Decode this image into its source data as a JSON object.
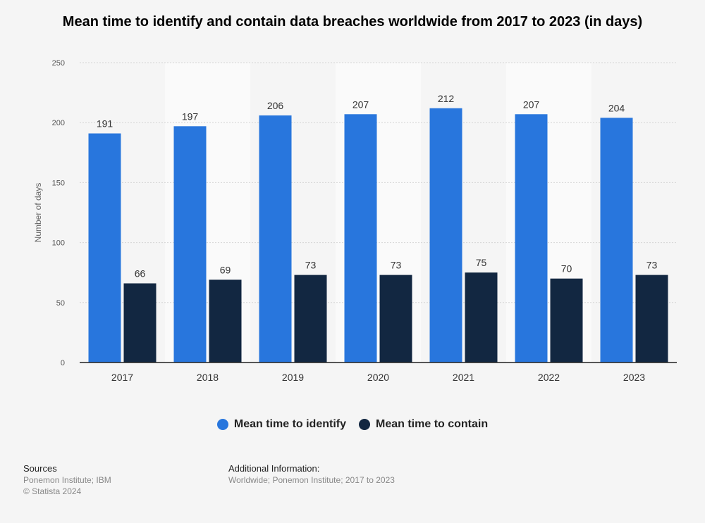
{
  "chart_data": {
    "type": "bar",
    "title": "Mean time to identify and contain data breaches worldwide from 2017 to 2023 (in days)",
    "xlabel": "",
    "ylabel": "Number of days",
    "categories": [
      "2017",
      "2018",
      "2019",
      "2020",
      "2021",
      "2022",
      "2023"
    ],
    "series": [
      {
        "name": "Mean time to identify",
        "values": [
          191,
          197,
          206,
          207,
          212,
          207,
          204
        ],
        "color": "#2876dd"
      },
      {
        "name": "Mean time to contain",
        "values": [
          66,
          69,
          73,
          73,
          75,
          70,
          73
        ],
        "color": "#122741"
      }
    ],
    "ylim": [
      0,
      250
    ],
    "yticks": [
      0,
      50,
      100,
      150,
      200,
      250
    ],
    "grid": true,
    "legend_position": "bottom"
  },
  "footer": {
    "sources_heading": "Sources",
    "sources_lines": [
      "Ponemon Institute; IBM",
      "© Statista 2024"
    ],
    "additional_heading": "Additional Information:",
    "additional_text": "Worldwide; Ponemon Institute; 2017 to 2023"
  }
}
